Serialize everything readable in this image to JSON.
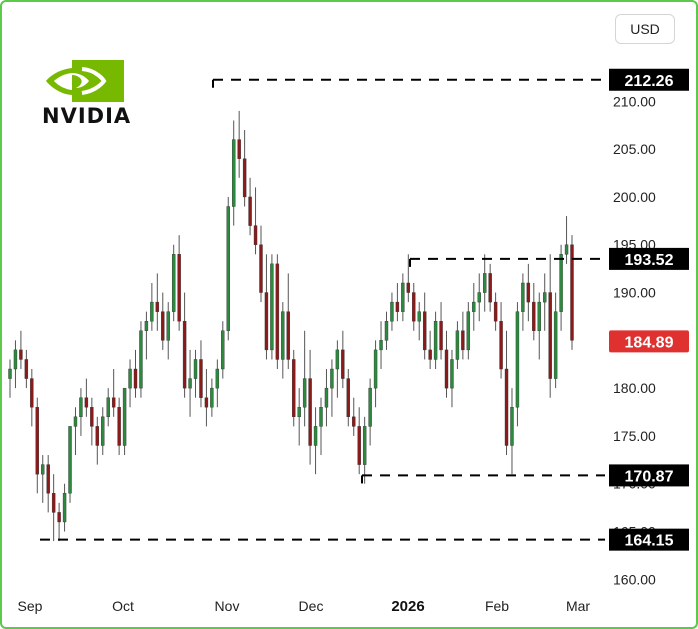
{
  "header": {
    "currency": "USD",
    "logo_text": "NVIDIA",
    "logo_icon": "nvidia-eye-icon"
  },
  "colors": {
    "up": "#2b8a3e",
    "down": "#8b1a1a",
    "last_price_bg": "#e03131",
    "level_bg": "#000000",
    "border": "#5cc94a"
  },
  "chart_data": {
    "type": "candlestick",
    "ylim": [
      157,
      216
    ],
    "y_ticks": [
      "210.00",
      "205.00",
      "200.00",
      "195.00",
      "190.00",
      "185.00",
      "180.00",
      "175.00",
      "170.00",
      "165.00",
      "160.00"
    ],
    "y_tick_values": [
      210,
      205,
      200,
      195,
      190,
      185,
      180,
      175,
      170,
      165,
      160
    ],
    "x_labels": [
      {
        "label": "Sep",
        "bold": false
      },
      {
        "label": "Oct",
        "bold": false
      },
      {
        "label": "Nov",
        "bold": false
      },
      {
        "label": "Dec",
        "bold": false
      },
      {
        "label": "2026",
        "bold": true
      },
      {
        "label": "Feb",
        "bold": false
      },
      {
        "label": "Mar",
        "bold": false
      }
    ],
    "levels": [
      {
        "value": 212.26,
        "label": "212.26"
      },
      {
        "value": 193.52,
        "label": "193.52"
      },
      {
        "value": 170.87,
        "label": "170.87"
      },
      {
        "value": 164.15,
        "label": "164.15"
      }
    ],
    "last_price": {
      "value": 184.89,
      "label": "184.89"
    },
    "candles": [
      [
        181,
        183,
        179,
        182
      ],
      [
        182,
        185,
        180,
        184
      ],
      [
        184,
        186,
        182,
        183
      ],
      [
        183,
        184,
        180,
        181
      ],
      [
        181,
        182,
        176,
        178
      ],
      [
        178,
        179,
        169,
        171
      ],
      [
        171,
        173,
        168,
        172
      ],
      [
        172,
        173,
        167,
        169
      ],
      [
        169,
        171,
        164,
        167
      ],
      [
        167,
        168,
        164,
        166
      ],
      [
        166,
        170,
        165,
        169
      ],
      [
        169,
        176,
        168,
        176
      ],
      [
        176,
        178,
        173,
        177
      ],
      [
        177,
        180,
        175,
        179
      ],
      [
        179,
        181,
        177,
        178
      ],
      [
        178,
        179,
        174,
        176
      ],
      [
        176,
        177,
        172,
        174
      ],
      [
        174,
        178,
        173,
        177
      ],
      [
        177,
        180,
        176,
        179
      ],
      [
        179,
        182,
        177,
        178
      ],
      [
        178,
        179,
        173,
        174
      ],
      [
        174,
        180,
        173,
        180
      ],
      [
        180,
        183,
        178,
        182
      ],
      [
        182,
        184,
        179,
        180
      ],
      [
        180,
        187,
        179,
        186
      ],
      [
        186,
        188,
        183,
        187
      ],
      [
        187,
        191,
        186,
        189
      ],
      [
        189,
        192,
        186,
        188
      ],
      [
        188,
        190,
        184,
        185
      ],
      [
        185,
        189,
        183,
        188
      ],
      [
        188,
        195,
        187,
        194
      ],
      [
        194,
        196,
        186,
        187
      ],
      [
        187,
        190,
        179,
        180
      ],
      [
        180,
        184,
        177,
        181
      ],
      [
        181,
        184,
        179,
        183
      ],
      [
        183,
        185,
        178,
        179
      ],
      [
        179,
        182,
        176,
        178
      ],
      [
        178,
        181,
        177,
        180
      ],
      [
        180,
        183,
        178,
        182
      ],
      [
        182,
        187,
        181,
        186
      ],
      [
        186,
        200,
        185,
        199
      ],
      [
        199,
        208,
        197,
        206
      ],
      [
        206,
        209,
        202,
        204
      ],
      [
        204,
        207,
        199,
        200
      ],
      [
        200,
        202,
        196,
        197
      ],
      [
        197,
        201,
        194,
        195
      ],
      [
        195,
        197,
        189,
        190
      ],
      [
        190,
        194,
        183,
        184
      ],
      [
        184,
        194,
        183,
        193
      ],
      [
        193,
        194,
        182,
        183
      ],
      [
        183,
        189,
        181,
        188
      ],
      [
        188,
        192,
        182,
        183
      ],
      [
        183,
        184,
        176,
        177
      ],
      [
        177,
        180,
        174,
        178
      ],
      [
        178,
        186,
        176,
        181
      ],
      [
        181,
        184,
        172,
        174
      ],
      [
        174,
        178,
        171,
        176
      ],
      [
        176,
        179,
        173,
        178
      ],
      [
        178,
        182,
        176,
        180
      ],
      [
        180,
        183,
        177,
        182
      ],
      [
        182,
        185,
        179,
        184
      ],
      [
        184,
        186,
        180,
        181
      ],
      [
        181,
        182,
        176,
        177
      ],
      [
        177,
        179,
        175,
        176
      ],
      [
        176,
        178,
        171,
        172
      ],
      [
        172,
        177,
        170,
        176
      ],
      [
        176,
        181,
        174,
        180
      ],
      [
        180,
        185,
        178,
        184
      ],
      [
        184,
        187,
        182,
        185
      ],
      [
        185,
        188,
        184,
        187
      ],
      [
        187,
        190,
        186,
        189
      ],
      [
        189,
        191,
        187,
        188
      ],
      [
        188,
        192,
        187,
        191
      ],
      [
        191,
        194,
        189,
        190
      ],
      [
        190,
        191,
        186,
        187
      ],
      [
        187,
        189,
        185,
        188
      ],
      [
        188,
        190,
        183,
        184
      ],
      [
        184,
        186,
        182,
        183
      ],
      [
        183,
        188,
        182,
        187
      ],
      [
        187,
        189,
        183,
        184
      ],
      [
        184,
        186,
        179,
        180
      ],
      [
        180,
        184,
        178,
        183
      ],
      [
        183,
        187,
        182,
        186
      ],
      [
        186,
        188,
        183,
        184
      ],
      [
        184,
        189,
        183,
        188
      ],
      [
        188,
        191,
        186,
        189
      ],
      [
        189,
        192,
        187,
        190
      ],
      [
        190,
        194,
        188,
        192
      ],
      [
        192,
        193,
        188,
        189
      ],
      [
        189,
        190,
        186,
        187
      ],
      [
        187,
        189,
        181,
        182
      ],
      [
        182,
        186,
        173,
        174
      ],
      [
        174,
        180,
        171,
        178
      ],
      [
        178,
        189,
        176,
        188
      ],
      [
        188,
        192,
        186,
        191
      ],
      [
        191,
        193,
        187,
        189
      ],
      [
        189,
        191,
        185,
        186
      ],
      [
        186,
        190,
        183,
        189
      ],
      [
        189,
        192,
        186,
        190
      ],
      [
        190,
        194,
        179,
        181
      ],
      [
        181,
        190,
        180,
        188
      ],
      [
        188,
        195,
        186,
        194
      ],
      [
        194,
        198,
        193,
        195
      ],
      [
        195,
        196,
        184,
        185
      ]
    ]
  }
}
